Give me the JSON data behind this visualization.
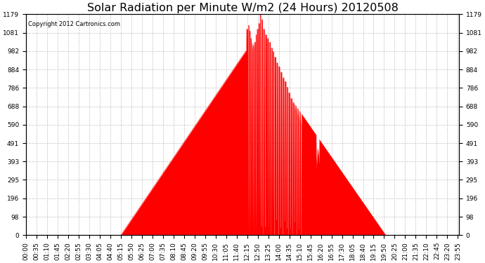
{
  "title": "Solar Radiation per Minute W/m2 (24 Hours) 20120508",
  "copyright_text": "Copyright 2012 Cartronics.com",
  "background_color": "#ffffff",
  "plot_bg_color": "#ffffff",
  "line_color": "#ff0000",
  "fill_color": "#ff0000",
  "dashed_zero_color": "#ff0000",
  "grid_color": "#bbbbbb",
  "y_max": 1179.0,
  "y_min": 0.0,
  "y_ticks": [
    0.0,
    98.2,
    196.5,
    294.8,
    393.0,
    491.2,
    589.5,
    687.8,
    786.0,
    884.2,
    982.5,
    1080.8,
    1179.0
  ],
  "num_minutes": 1440,
  "title_fontsize": 11.5,
  "tick_fontsize": 6.5,
  "x_tick_step": 35,
  "sunrise_min": 315,
  "sunset_min": 1195,
  "peak_time_min": 750,
  "peak_value": 1030
}
